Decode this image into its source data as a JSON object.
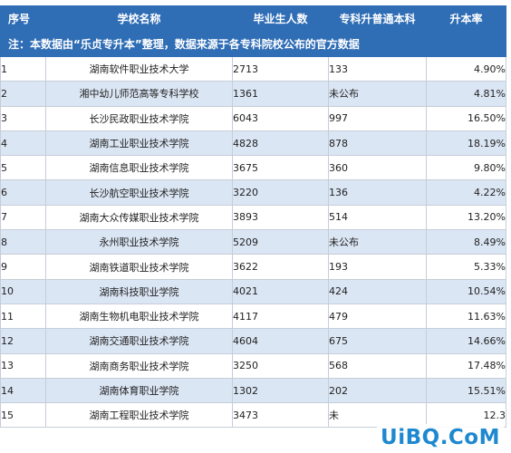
{
  "header": {
    "col_index": "序号",
    "col_school": "学校名称",
    "col_graduates": "毕业生人数",
    "col_upgrade": "专科升普通本科",
    "col_rate": "升本率"
  },
  "note": "注：本数据由“乐贞专升本”整理，数据来源于各专科院校公布的官方数据",
  "rows": [
    {
      "index": "1",
      "school": "湖南软件职业技术大学",
      "graduates": "2713",
      "upgrade": "133",
      "rate": "4.90%"
    },
    {
      "index": "2",
      "school": "湘中幼儿师范高等专科学校",
      "graduates": "1361",
      "upgrade": "未公布",
      "rate": "4.81%"
    },
    {
      "index": "3",
      "school": "长沙民政职业技术学院",
      "graduates": "6043",
      "upgrade": "997",
      "rate": "16.50%"
    },
    {
      "index": "4",
      "school": "湖南工业职业技术学院",
      "graduates": "4828",
      "upgrade": "878",
      "rate": "18.19%"
    },
    {
      "index": "5",
      "school": "湖南信息职业技术学院",
      "graduates": "3675",
      "upgrade": "360",
      "rate": "9.80%"
    },
    {
      "index": "6",
      "school": "长沙航空职业技术学院",
      "graduates": "3220",
      "upgrade": "136",
      "rate": "4.22%"
    },
    {
      "index": "7",
      "school": "湖南大众传媒职业技术学院",
      "graduates": "3893",
      "upgrade": "514",
      "rate": "13.20%"
    },
    {
      "index": "8",
      "school": "永州职业技术学院",
      "graduates": "5209",
      "upgrade": "未公布",
      "rate": "8.49%"
    },
    {
      "index": "9",
      "school": "湖南铁道职业技术学院",
      "graduates": "3622",
      "upgrade": "193",
      "rate": "5.33%"
    },
    {
      "index": "10",
      "school": "湖南科技职业学院",
      "graduates": "4021",
      "upgrade": "424",
      "rate": "10.54%"
    },
    {
      "index": "11",
      "school": "湖南生物机电职业技术学院",
      "graduates": "4117",
      "upgrade": "479",
      "rate": "11.63%"
    },
    {
      "index": "12",
      "school": "湖南交通职业技术学院",
      "graduates": "4604",
      "upgrade": "675",
      "rate": "14.66%"
    },
    {
      "index": "13",
      "school": "湖南商务职业技术学院",
      "graduates": "3250",
      "upgrade": "568",
      "rate": "17.48%"
    },
    {
      "index": "14",
      "school": "湖南体育职业学院",
      "graduates": "1302",
      "upgrade": "202",
      "rate": "15.51%"
    },
    {
      "index": "15",
      "school": "湖南工程职业技术学院",
      "graduates": "3473",
      "upgrade": "未",
      "rate": "12.3"
    }
  ],
  "watermark": "UiBQ.CoM",
  "colors": {
    "header_bg": "#2f6db5",
    "stripe_bg": "#dbe6f4",
    "watermark": "#1e88d0"
  }
}
